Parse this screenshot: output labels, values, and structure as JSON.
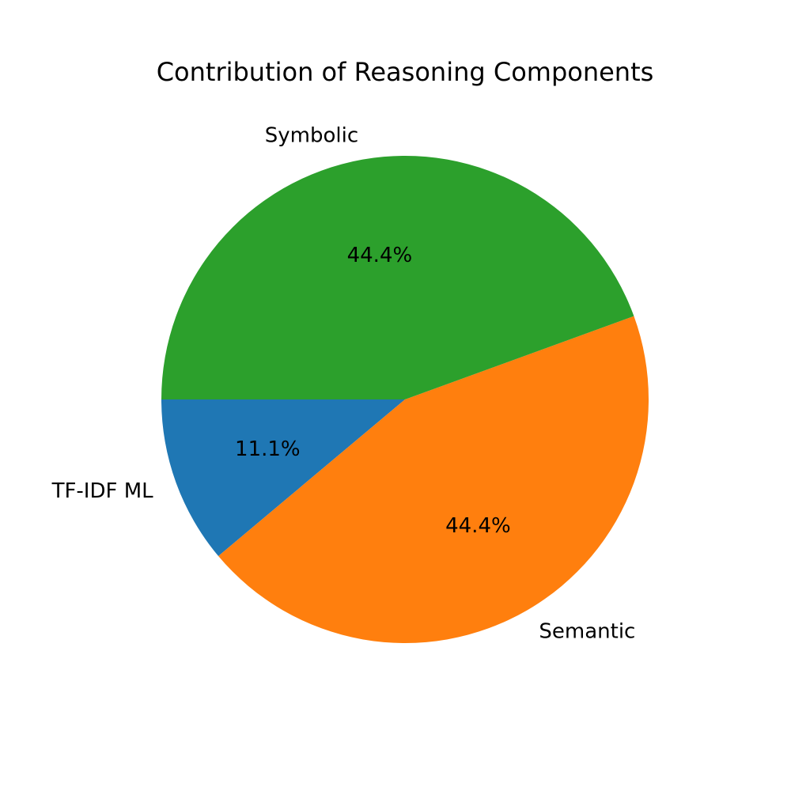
{
  "chart_data": {
    "type": "pie",
    "title": "Contribution of Reasoning Components",
    "categories": [
      "TF-IDF ML",
      "Semantic",
      "Symbolic"
    ],
    "values": [
      11.1,
      44.4,
      44.4
    ],
    "value_labels": [
      "11.1%",
      "44.4%",
      "44.4%"
    ],
    "colors": [
      "#1f77b4",
      "#ff7f0e",
      "#2ca02c"
    ],
    "start_angle_deg": 180,
    "direction": "counterclockwise",
    "legend": "none"
  }
}
